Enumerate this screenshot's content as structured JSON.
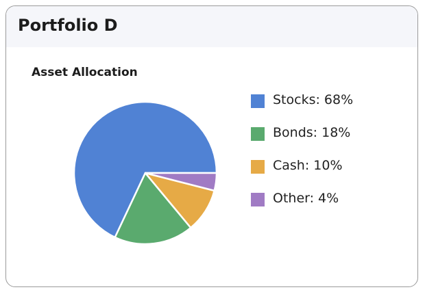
{
  "card": {
    "title": "Portfolio D"
  },
  "chart_data": {
    "type": "pie",
    "title": "Asset Allocation",
    "legend_position": "right",
    "slices": [
      {
        "label": "Stocks: 68%",
        "name": "Stocks",
        "value": 68,
        "color": "#5082d4"
      },
      {
        "label": "Bonds: 18%",
        "name": "Bonds",
        "value": 18,
        "color": "#5aaa6e"
      },
      {
        "label": "Cash: 10%",
        "name": "Cash",
        "value": 10,
        "color": "#e6aa46"
      },
      {
        "label": "Other: 4%",
        "name": "Other",
        "value": 4,
        "color": "#a07bc4"
      }
    ]
  }
}
